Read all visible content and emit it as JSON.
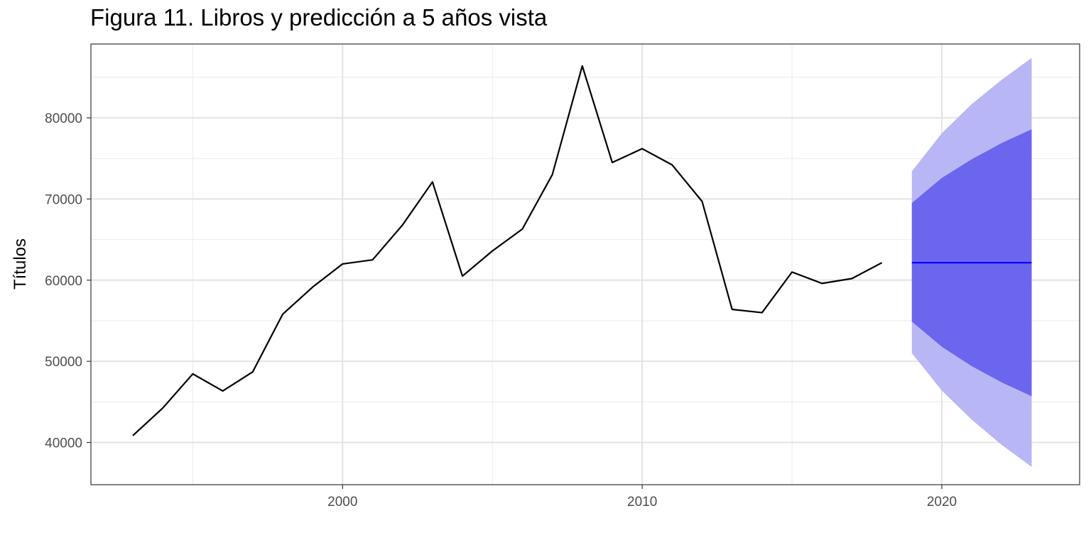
{
  "chart_data": {
    "type": "line",
    "title": "Figura 11. Libros y predicción a 5 años vista",
    "xlabel": "",
    "ylabel": "Títulos",
    "xlim": [
      1991.6,
      2024.6
    ],
    "ylim": [
      34800,
      89100
    ],
    "x_ticks": [
      2000,
      2010,
      2020
    ],
    "x_tick_labels": [
      "2000",
      "2010",
      "2020"
    ],
    "x_minor_ticks": [
      1995,
      2005,
      2015
    ],
    "y_ticks": [
      40000,
      50000,
      60000,
      70000,
      80000
    ],
    "y_tick_labels": [
      "40000",
      "50000",
      "60000",
      "70000",
      "80000"
    ],
    "y_minor_ticks": [
      45000,
      55000,
      65000,
      75000,
      85000
    ],
    "grid": true,
    "series": [
      {
        "role": "observed",
        "color": "#000000",
        "x": [
          1993,
          1994,
          1995,
          1996,
          1997,
          1998,
          1999,
          2000,
          2001,
          2002,
          2003,
          2004,
          2005,
          2006,
          2007,
          2008,
          2009,
          2010,
          2011,
          2012,
          2013,
          2014,
          2015,
          2016,
          2017,
          2018
        ],
        "values": [
          40850,
          44250,
          48450,
          46350,
          48700,
          55800,
          59150,
          62000,
          62500,
          66800,
          72100,
          60500,
          63600,
          66300,
          73000,
          86400,
          74500,
          76200,
          74200,
          69700,
          56400,
          56000,
          61000,
          59600,
          60200,
          62150
        ]
      }
    ],
    "forecast": {
      "x": [
        2019,
        2020,
        2021,
        2022,
        2023
      ],
      "mean": [
        62150,
        62150,
        62150,
        62150,
        62150
      ],
      "lo80": [
        54900,
        51800,
        49400,
        47400,
        45700
      ],
      "hi80": [
        69500,
        72600,
        74900,
        76900,
        78600
      ],
      "lo95": [
        51000,
        46400,
        42800,
        39700,
        37000
      ],
      "hi95": [
        73400,
        78100,
        81700,
        84700,
        87400
      ],
      "mean_color": "#0000ff",
      "band80_color": "#6b66ed",
      "band95_color": "#b8b6f4"
    }
  }
}
